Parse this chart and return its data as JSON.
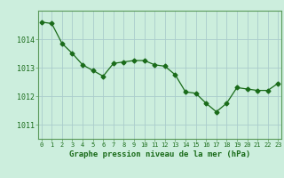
{
  "x": [
    0,
    1,
    2,
    3,
    4,
    5,
    6,
    7,
    8,
    9,
    10,
    11,
    12,
    13,
    14,
    15,
    16,
    17,
    18,
    19,
    20,
    21,
    22,
    23
  ],
  "y": [
    1014.6,
    1014.55,
    1013.85,
    1013.5,
    1013.1,
    1012.9,
    1012.7,
    1013.15,
    1013.2,
    1013.25,
    1013.25,
    1013.1,
    1013.05,
    1012.75,
    1012.15,
    1012.1,
    1011.75,
    1011.45,
    1011.75,
    1012.3,
    1012.25,
    1012.2,
    1012.2,
    1012.45
  ],
  "line_color": "#1a6b1a",
  "marker": "D",
  "marker_size": 2.5,
  "bg_color": "#cceedd",
  "grid_color": "#aacccc",
  "xlabel": "Graphe pression niveau de la mer (hPa)",
  "xlabel_color": "#1a6b1a",
  "tick_color": "#1a6b1a",
  "axis_color": "#5a9a5a",
  "ylabel_ticks": [
    1011,
    1012,
    1013,
    1014
  ],
  "xlim": [
    -0.3,
    23.3
  ],
  "ylim": [
    1010.5,
    1015.0
  ],
  "xticks": [
    0,
    1,
    2,
    3,
    4,
    5,
    6,
    7,
    8,
    9,
    10,
    11,
    12,
    13,
    14,
    15,
    16,
    17,
    18,
    19,
    20,
    21,
    22,
    23
  ]
}
